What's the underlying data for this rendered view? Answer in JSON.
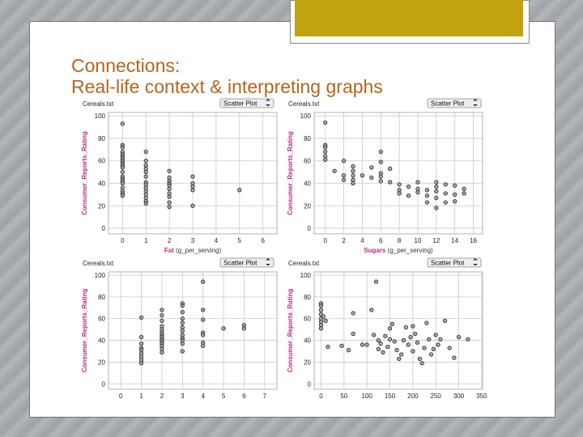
{
  "slide": {
    "title_line1": "Connections:",
    "title_line2": "Real-life context & interpreting graphs"
  },
  "colors": {
    "title": "#b5651d",
    "axis_label": "#b8327a",
    "grid": "#c7c9cc",
    "point_fill": "#9a9a9a",
    "point_stroke": "#303030",
    "decor_gold": "#c2a20e"
  },
  "chart_data": [
    {
      "type": "scatter",
      "dataset": "Cereals.txt",
      "plot_type_label": "Scatter Plot",
      "xlabel": "Fat",
      "xunit": "(g_per_serving)",
      "ylabel": "Consumer_Reports_Rating",
      "xlim": [
        -0.6,
        6.6
      ],
      "ylim": [
        -5,
        103
      ],
      "xticks": [
        0,
        1,
        2,
        3,
        4,
        5,
        6
      ],
      "yticks": [
        0,
        20,
        40,
        60,
        80,
        100
      ],
      "grid": true,
      "points": [
        [
          0,
          93
        ],
        [
          0,
          74
        ],
        [
          0,
          72
        ],
        [
          0,
          68
        ],
        [
          0,
          66
        ],
        [
          0,
          64
        ],
        [
          0,
          62
        ],
        [
          0,
          60
        ],
        [
          0,
          58
        ],
        [
          0,
          56
        ],
        [
          0,
          54
        ],
        [
          0,
          50
        ],
        [
          0,
          46
        ],
        [
          0,
          44
        ],
        [
          0,
          42
        ],
        [
          0,
          40
        ],
        [
          0,
          36
        ],
        [
          0,
          33
        ],
        [
          0,
          31
        ],
        [
          0,
          29
        ],
        [
          1,
          68
        ],
        [
          1,
          60
        ],
        [
          1,
          56
        ],
        [
          1,
          53
        ],
        [
          1,
          50
        ],
        [
          1,
          46
        ],
        [
          1,
          41
        ],
        [
          1,
          39
        ],
        [
          1,
          36
        ],
        [
          1,
          33
        ],
        [
          1,
          30
        ],
        [
          1,
          27
        ],
        [
          1,
          24
        ],
        [
          1,
          22
        ],
        [
          2,
          51
        ],
        [
          2,
          45
        ],
        [
          2,
          42
        ],
        [
          2,
          40
        ],
        [
          2,
          38
        ],
        [
          2,
          35
        ],
        [
          2,
          31
        ],
        [
          2,
          28
        ],
        [
          2,
          23
        ],
        [
          2,
          19
        ],
        [
          3,
          46
        ],
        [
          3,
          40
        ],
        [
          3,
          37
        ],
        [
          3,
          34
        ],
        [
          3,
          20
        ],
        [
          5,
          34
        ]
      ]
    },
    {
      "type": "scatter",
      "dataset": "Cereals.txt",
      "plot_type_label": "Scatter Plot",
      "xlabel": "Sugars",
      "xunit": "(g_per_serving)",
      "ylabel": "Consumer_Reports_Rating",
      "xlim": [
        -1.2,
        17
      ],
      "ylim": [
        -5,
        103
      ],
      "xticks": [
        0,
        2,
        4,
        6,
        8,
        10,
        12,
        14,
        16
      ],
      "yticks": [
        0,
        20,
        40,
        60,
        80,
        100
      ],
      "grid": true,
      "points": [
        [
          0,
          94
        ],
        [
          0,
          74
        ],
        [
          0,
          72
        ],
        [
          0,
          68
        ],
        [
          0,
          64
        ],
        [
          0,
          61
        ],
        [
          1,
          51
        ],
        [
          2,
          60
        ],
        [
          2,
          47
        ],
        [
          2,
          43
        ],
        [
          3,
          55
        ],
        [
          3,
          51
        ],
        [
          3,
          47
        ],
        [
          3,
          43
        ],
        [
          3,
          40
        ],
        [
          4,
          47
        ],
        [
          5,
          54
        ],
        [
          5,
          45
        ],
        [
          6,
          68
        ],
        [
          6,
          59
        ],
        [
          6,
          49
        ],
        [
          6,
          46
        ],
        [
          6,
          42
        ],
        [
          7,
          53
        ],
        [
          7,
          41
        ],
        [
          8,
          39
        ],
        [
          8,
          34
        ],
        [
          8,
          31
        ],
        [
          9,
          37
        ],
        [
          9,
          29
        ],
        [
          10,
          41
        ],
        [
          10,
          35
        ],
        [
          10,
          32
        ],
        [
          11,
          34
        ],
        [
          11,
          29
        ],
        [
          11,
          23
        ],
        [
          12,
          41
        ],
        [
          12,
          37
        ],
        [
          12,
          33
        ],
        [
          12,
          27
        ],
        [
          12,
          18
        ],
        [
          13,
          39
        ],
        [
          13,
          31
        ],
        [
          13,
          23
        ],
        [
          14,
          38
        ],
        [
          14,
          30
        ],
        [
          14,
          24
        ],
        [
          15,
          35
        ],
        [
          15,
          31
        ]
      ]
    },
    {
      "type": "scatter",
      "dataset": "Cereals.txt",
      "plot_type_label": "Scatter Plot",
      "xlabel": "",
      "xunit": "",
      "ylabel": "Consumer_Reports_Rating",
      "xlim": [
        -0.6,
        7.6
      ],
      "ylim": [
        -5,
        103
      ],
      "xticks": [
        0,
        1,
        2,
        3,
        4,
        5,
        6,
        7
      ],
      "yticks": [
        0,
        20,
        40,
        60,
        80,
        100
      ],
      "grid": true,
      "points": [
        [
          1,
          61
        ],
        [
          1,
          43
        ],
        [
          1,
          37
        ],
        [
          1,
          33
        ],
        [
          1,
          31
        ],
        [
          1,
          28
        ],
        [
          1,
          25
        ],
        [
          1,
          22
        ],
        [
          1,
          19
        ],
        [
          2,
          68
        ],
        [
          2,
          63
        ],
        [
          2,
          58
        ],
        [
          2,
          53
        ],
        [
          2,
          50
        ],
        [
          2,
          47
        ],
        [
          2,
          45
        ],
        [
          2,
          43
        ],
        [
          2,
          41
        ],
        [
          2,
          39
        ],
        [
          2,
          37
        ],
        [
          2,
          35
        ],
        [
          2,
          32
        ],
        [
          2,
          29
        ],
        [
          3,
          74
        ],
        [
          3,
          72
        ],
        [
          3,
          66
        ],
        [
          3,
          60
        ],
        [
          3,
          56
        ],
        [
          3,
          52
        ],
        [
          3,
          49
        ],
        [
          3,
          45
        ],
        [
          3,
          42
        ],
        [
          3,
          40
        ],
        [
          3,
          37
        ],
        [
          3,
          30
        ],
        [
          4,
          94
        ],
        [
          4,
          68
        ],
        [
          4,
          59
        ],
        [
          4,
          47
        ],
        [
          4,
          45
        ],
        [
          4,
          38
        ],
        [
          4,
          35
        ],
        [
          5,
          51
        ],
        [
          6,
          54
        ],
        [
          6,
          51
        ]
      ]
    },
    {
      "type": "scatter",
      "dataset": "Cereals.txt",
      "plot_type_label": "Scatter Plot",
      "xlabel": "",
      "xunit": "",
      "ylabel": "Consumer_Reports_Rating",
      "xlim": [
        -15,
        352
      ],
      "ylim": [
        -5,
        103
      ],
      "xticks": [
        0,
        50,
        100,
        150,
        200,
        250,
        300,
        350
      ],
      "yticks": [
        0,
        20,
        40,
        60,
        80,
        100
      ],
      "grid": true,
      "points": [
        [
          0,
          74
        ],
        [
          0,
          72
        ],
        [
          0,
          68
        ],
        [
          0,
          64
        ],
        [
          0,
          60
        ],
        [
          0,
          57
        ],
        [
          0,
          54
        ],
        [
          0,
          51
        ],
        [
          5,
          62
        ],
        [
          10,
          58
        ],
        [
          15,
          34
        ],
        [
          45,
          35
        ],
        [
          60,
          31
        ],
        [
          70,
          46
        ],
        [
          70,
          65
        ],
        [
          90,
          36
        ],
        [
          100,
          36
        ],
        [
          110,
          68
        ],
        [
          115,
          45
        ],
        [
          120,
          94
        ],
        [
          125,
          40
        ],
        [
          125,
          32
        ],
        [
          130,
          37
        ],
        [
          135,
          29
        ],
        [
          140,
          44
        ],
        [
          145,
          34
        ],
        [
          150,
          41
        ],
        [
          150,
          51
        ],
        [
          155,
          55
        ],
        [
          160,
          39
        ],
        [
          165,
          31
        ],
        [
          170,
          23
        ],
        [
          175,
          27
        ],
        [
          180,
          40
        ],
        [
          185,
          52
        ],
        [
          190,
          36
        ],
        [
          195,
          43
        ],
        [
          200,
          30
        ],
        [
          200,
          53
        ],
        [
          205,
          46
        ],
        [
          210,
          38
        ],
        [
          215,
          23
        ],
        [
          220,
          19
        ],
        [
          225,
          33
        ],
        [
          230,
          56
        ],
        [
          235,
          41
        ],
        [
          240,
          27
        ],
        [
          245,
          32
        ],
        [
          250,
          45
        ],
        [
          255,
          36
        ],
        [
          260,
          41
        ],
        [
          270,
          58
        ],
        [
          280,
          33
        ],
        [
          290,
          24
        ],
        [
          300,
          43
        ],
        [
          320,
          41
        ]
      ]
    }
  ]
}
